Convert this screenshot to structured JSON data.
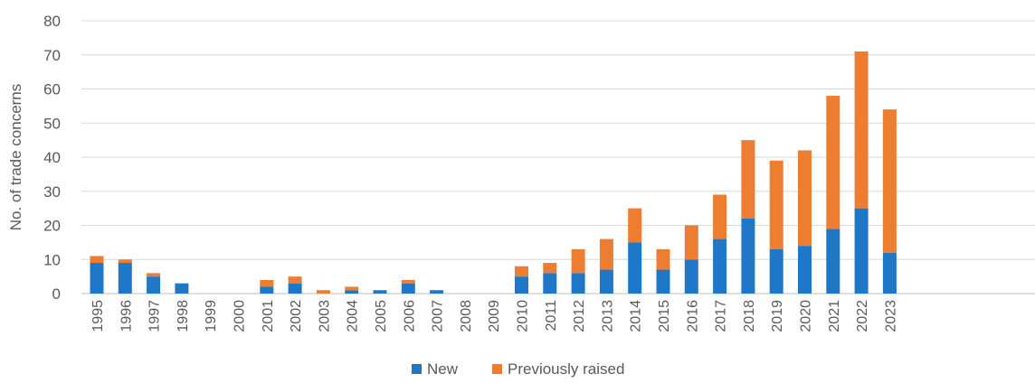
{
  "chart_data": {
    "type": "bar",
    "stacked": true,
    "ylabel": "No. of trade concerns",
    "xlabel": "",
    "ylim": [
      0,
      80
    ],
    "yticks": [
      0,
      10,
      20,
      30,
      40,
      50,
      60,
      70,
      80
    ],
    "grid": true,
    "legend_position": "bottom",
    "categories": [
      "1995",
      "1996",
      "1997",
      "1998",
      "1999",
      "2000",
      "2001",
      "2002",
      "2003",
      "2004",
      "2005",
      "2006",
      "2007",
      "2008",
      "2009",
      "2010",
      "2011",
      "2012",
      "2013",
      "2014",
      "2015",
      "2016",
      "2017",
      "2018",
      "2019",
      "2020",
      "2021",
      "2022",
      "2023"
    ],
    "series": [
      {
        "name": "New",
        "color": "#1F77C8",
        "values": [
          9,
          9,
          5,
          3,
          0,
          0,
          2,
          3,
          0,
          1,
          1,
          3,
          1,
          0,
          0,
          5,
          6,
          6,
          7,
          15,
          7,
          10,
          16,
          22,
          13,
          14,
          19,
          25,
          12
        ]
      },
      {
        "name": "Previously raised",
        "color": "#ED7D31",
        "values": [
          2,
          1,
          1,
          0,
          0,
          0,
          2,
          2,
          1,
          1,
          0,
          1,
          0,
          0,
          0,
          3,
          3,
          7,
          9,
          10,
          6,
          10,
          13,
          23,
          26,
          28,
          39,
          46,
          42
        ]
      }
    ]
  }
}
